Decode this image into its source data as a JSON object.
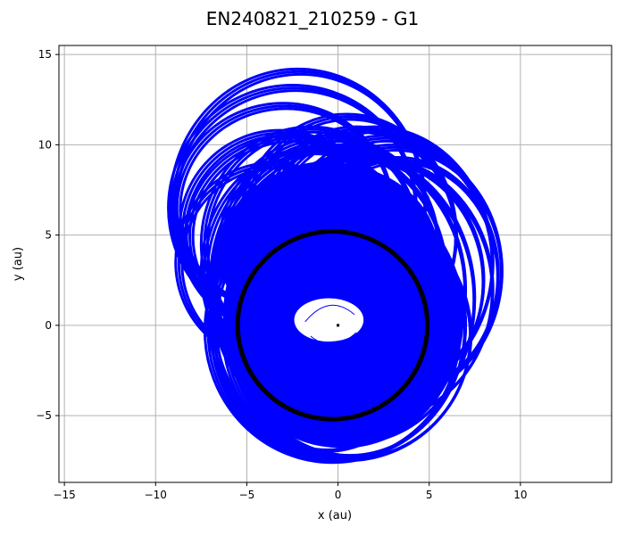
{
  "chart_data": {
    "type": "line",
    "title": "EN240821_210259 - G1",
    "xlabel": "x (au)",
    "ylabel": "y (au)",
    "xlim": [
      -15.3,
      15.0
    ],
    "ylim": [
      -8.7,
      15.5
    ],
    "xticks": [
      -15,
      -10,
      -5,
      0,
      5,
      10
    ],
    "xtick_labels": [
      "−15",
      "−10",
      "−5",
      "0",
      "5",
      "10"
    ],
    "yticks": [
      -5,
      0,
      5,
      10,
      15
    ],
    "ytick_labels": [
      "−5",
      "0",
      "5",
      "10",
      "15"
    ],
    "grid": true,
    "legend": "none",
    "series": [
      {
        "color": "#0000ff",
        "style": "many overlapping precessing elliptical orbits",
        "orbits": [
          {
            "cx": -2.2,
            "cy": 6.7,
            "rx": 7.0,
            "ry": 7.5
          },
          {
            "cx": -2.5,
            "cy": 6.5,
            "rx": 6.8,
            "ry": 6.8
          },
          {
            "cx": -3.0,
            "cy": 6.5,
            "rx": 6.0,
            "ry": 5.8
          },
          {
            "cx": -3.2,
            "cy": 5.2,
            "rx": 5.5,
            "ry": 5.6
          },
          {
            "cx": -2.5,
            "cy": 5.0,
            "rx": 5.8,
            "ry": 5.5
          },
          {
            "cx": -3.6,
            "cy": 3.5,
            "rx": 5.3,
            "ry": 5.5
          },
          {
            "cx": -1.5,
            "cy": 4.5,
            "rx": 6.0,
            "ry": 6.5
          },
          {
            "cx": -0.5,
            "cy": 4.5,
            "rx": 6.0,
            "ry": 6.0
          },
          {
            "cx": 0.5,
            "cy": 5.0,
            "rx": 6.0,
            "ry": 6.7
          },
          {
            "cx": 1.0,
            "cy": 5.0,
            "rx": 5.5,
            "ry": 6.0
          },
          {
            "cx": 2.0,
            "cy": 3.5,
            "rx": 6.5,
            "ry": 7.5
          },
          {
            "cx": 2.5,
            "cy": 3.5,
            "rx": 6.0,
            "ry": 7.0
          },
          {
            "cx": 3.0,
            "cy": 3.0,
            "rx": 6.0,
            "ry": 7.0
          },
          {
            "cx": 3.3,
            "cy": 2.8,
            "rx": 5.5,
            "ry": 6.5
          },
          {
            "cx": 2.0,
            "cy": 2.0,
            "rx": 6.5,
            "ry": 7.3
          },
          {
            "cx": 1.5,
            "cy": 2.5,
            "rx": 6.5,
            "ry": 7.0
          },
          {
            "cx": -0.5,
            "cy": 2.5,
            "rx": 6.5,
            "ry": 7.5
          },
          {
            "cx": -1.5,
            "cy": 3.0,
            "rx": 6.0,
            "ry": 6.8
          },
          {
            "cx": 0.0,
            "cy": 2.0,
            "rx": 7.0,
            "ry": 8.0
          },
          {
            "cx": -0.7,
            "cy": 1.0,
            "rx": 6.5,
            "ry": 8.0
          },
          {
            "cx": 1.0,
            "cy": 1.5,
            "rx": 6.5,
            "ry": 8.0
          },
          {
            "cx": 0.0,
            "cy": 0.0,
            "rx": 7.0,
            "ry": 7.5
          },
          {
            "cx": 0.5,
            "cy": -0.5,
            "rx": 6.8,
            "ry": 7.0
          },
          {
            "cx": -0.3,
            "cy": -0.3,
            "rx": 7.0,
            "ry": 7.3
          },
          {
            "cx": 0.5,
            "cy": 0.0,
            "rx": 6.5,
            "ry": 7.3
          },
          {
            "cx": 0.0,
            "cy": -0.2,
            "rx": 6.0,
            "ry": 6.5
          }
        ]
      },
      {
        "color": "#000000",
        "style": "near-circular orbit",
        "orbits": [
          {
            "cx": -0.3,
            "cy": 0.0,
            "rx": 5.2,
            "ry": 5.2
          }
        ]
      }
    ],
    "central_point": {
      "x": 0.0,
      "y": 0.0,
      "color": "#000000"
    },
    "hole": {
      "cx": -0.5,
      "cy": 0.3,
      "rx": 1.9,
      "ry": 1.2
    }
  }
}
